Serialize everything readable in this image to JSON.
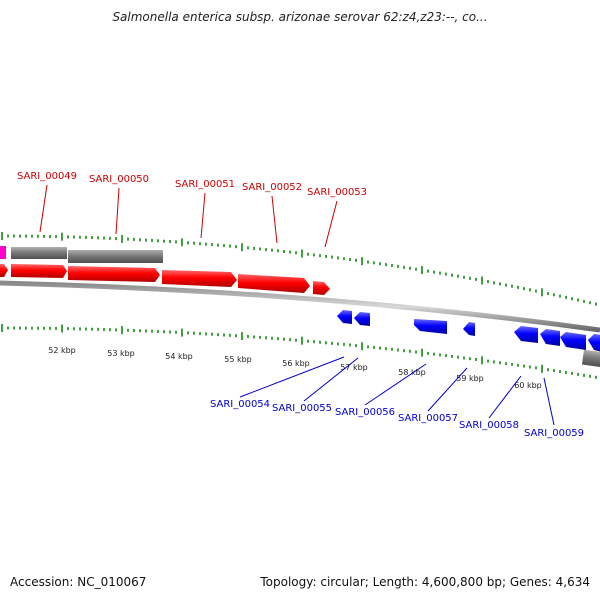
{
  "title": "Salmonella enterica subsp. arizonae serovar 62:z4,z23:--, co...",
  "footer": {
    "accession": "Accession: NC_010067",
    "summary": "Topology: circular; Length: 4,600,800 bp; Genes: 4,634"
  },
  "colors": {
    "forward_gene": "#ff0000",
    "reverse_gene": "#0000ff",
    "forward_label": "#cc0000",
    "reverse_label": "#0000cc",
    "rna_gene": "#808080",
    "other_gene": "#ff00cc",
    "tick": "#008000"
  },
  "kbp_labels": [
    "52 kbp",
    "53 kbp",
    "54 kbp",
    "55 kbp",
    "56 kbp",
    "57 kbp",
    "58 kbp",
    "59 kbp",
    "60 kbp"
  ],
  "forward_labels": [
    "SARI_00049",
    "SARI_00050",
    "SARI_00051",
    "SARI_00052",
    "SARI_00053"
  ],
  "reverse_labels": [
    "SARI_00054",
    "SARI_00055",
    "SARI_00056",
    "SARI_00057",
    "SARI_00058",
    "SARI_00059"
  ]
}
